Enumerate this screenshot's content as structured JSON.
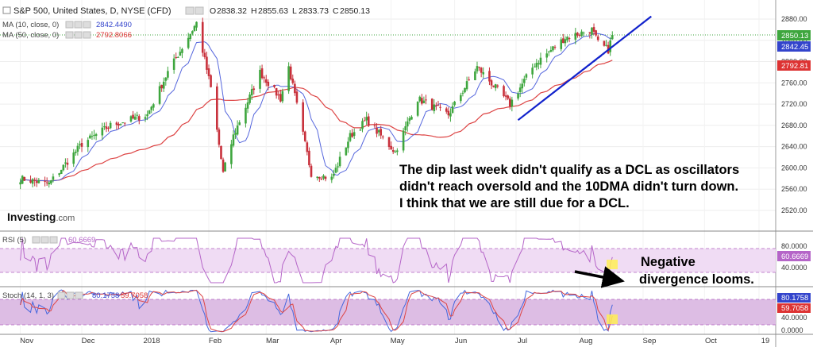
{
  "header": {
    "symbol": "S&P 500, United States, D, NYSE (CFD)",
    "ohlc": {
      "o_label": "O",
      "o": "2838.32",
      "h_label": "H",
      "h": "2855.63",
      "l_label": "L",
      "l": "2833.73",
      "c_label": "C",
      "c": "2850.13"
    },
    "ma10_label": "MA (10, close, 0)",
    "ma10_value": "2842.4490",
    "ma50_label": "MA (50, close, 0)",
    "ma50_value": "2792.8066"
  },
  "annotations": {
    "main_text_lines": [
      "The dip last week didn't qualify as a DCL as oscillators",
      "didn't reach oversold and the 10DMA didn't turn down.",
      "I think that we are still due for a DCL."
    ],
    "divergence_lines": [
      "Negative",
      "divergence looms."
    ]
  },
  "logo": {
    "text": "Investing",
    "suffix": ".com"
  },
  "rsi": {
    "label": "RSI (5)",
    "value": "60.6669",
    "ticks": [
      "80.0000",
      "40.0000"
    ]
  },
  "stoch": {
    "label": "Stoch (14, 1, 3)",
    "k_value": "80.1758",
    "d_value": "59.7058",
    "ticks": [
      "80.1758",
      "59.7058",
      "40.0000",
      "0.0000"
    ]
  },
  "price_badges": {
    "close": "2850.13",
    "ma10": "2842.45",
    "ma50": "2792.81"
  },
  "colors": {
    "up": "#3ea63e",
    "down": "#c8303b",
    "ma10": "#5566dd",
    "ma50": "#dd4444",
    "trend": "#1122cc",
    "rsi": "#b565c8",
    "stoch_k": "#4466dd",
    "stoch_d": "#dd4444",
    "band": "#eed7f2",
    "highlight": "#ffee55"
  },
  "chart_data": {
    "type": "candlestick",
    "y_axis": {
      "ticks": [
        2880,
        2840,
        2800,
        2760,
        2720,
        2680,
        2640,
        2600,
        2560,
        2520
      ],
      "range": [
        2500,
        2895
      ]
    },
    "x_axis": {
      "labels": [
        "Nov",
        "Dec",
        "2018",
        "Feb",
        "Mar",
        "Apr",
        "May",
        "Jun",
        "Jul",
        "Aug",
        "Sep",
        "Oct",
        "19"
      ]
    },
    "price_anchors": {
      "dates": [
        "2017-11-01",
        "2017-11-15",
        "2017-12-01",
        "2017-12-15",
        "2018-01-02",
        "2018-01-12",
        "2018-01-26",
        "2018-02-02",
        "2018-02-08",
        "2018-02-13",
        "2018-02-26",
        "2018-03-08",
        "2018-03-12",
        "2018-03-23",
        "2018-04-02",
        "2018-04-11",
        "2018-04-19",
        "2018-05-03",
        "2018-05-14",
        "2018-05-29",
        "2018-06-12",
        "2018-06-28",
        "2018-07-10",
        "2018-07-25",
        "2018-08-07",
        "2018-08-10",
        "2018-08-15",
        "2018-08-17"
      ],
      "close": [
        2580,
        2570,
        2645,
        2680,
        2700,
        2780,
        2873,
        2750,
        2590,
        2660,
        2780,
        2730,
        2790,
        2590,
        2580,
        2660,
        2690,
        2630,
        2730,
        2700,
        2790,
        2720,
        2795,
        2845,
        2860,
        2835,
        2822,
        2850
      ]
    },
    "trendlines": [
      {
        "style": "solid",
        "x": [
          "2018-07-02",
          "2018-09-05"
        ],
        "y": [
          2690,
          2885
        ]
      },
      {
        "style": "dashed",
        "x": [
          "2018-07-02",
          "2018-08-13"
        ],
        "y": [
          2690,
          2815
        ]
      }
    ],
    "current": {
      "close": 2850.13,
      "ma10": 2842.45,
      "ma50": 2792.81
    },
    "rsi_range": [
      0,
      100
    ],
    "stoch_range": [
      0,
      100
    ]
  }
}
